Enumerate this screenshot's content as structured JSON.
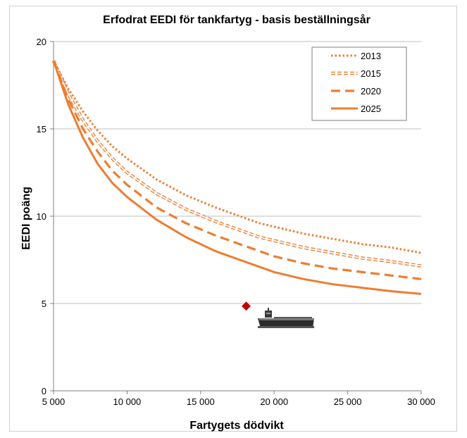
{
  "colors": {
    "series": "#ED7D31",
    "grid": "#BFBFBF",
    "axis": "#808080",
    "marker": "#C00000",
    "legend_border": "#7F7F7F"
  },
  "chart_data": {
    "type": "line",
    "title": "Erfodrat EEDI för tankfartyg - basis beställningsår",
    "xlabel": "Fartygets dödvikt",
    "ylabel": "EEDI  poäng",
    "xlim": [
      5000,
      30000
    ],
    "ylim": [
      0,
      20
    ],
    "x_ticks": [
      5000,
      10000,
      15000,
      20000,
      25000,
      30000
    ],
    "x_tick_labels": [
      "5 000",
      "10 000",
      "15 000",
      "20 000",
      "25 000",
      "30 000"
    ],
    "y_ticks": [
      0,
      5,
      10,
      15,
      20
    ],
    "y_tick_labels": [
      "0",
      "5",
      "10",
      "15",
      "20"
    ],
    "grid": "horizontal",
    "legend_position": "top-right",
    "x": [
      5000,
      6000,
      7000,
      8000,
      9000,
      10000,
      12000,
      14000,
      16000,
      18000,
      19000,
      20000,
      22000,
      24000,
      26000,
      28000,
      30000
    ],
    "series": [
      {
        "name": "2013",
        "style": "dotted",
        "values": [
          18.9,
          17.3,
          16.0,
          14.9,
          14.0,
          13.3,
          12.1,
          11.2,
          10.5,
          9.9,
          9.6,
          9.4,
          9.0,
          8.7,
          8.4,
          8.2,
          7.9
        ]
      },
      {
        "name": "2015",
        "style": "double",
        "values": [
          18.9,
          17.0,
          15.5,
          14.3,
          13.3,
          12.5,
          11.3,
          10.4,
          9.7,
          9.1,
          8.8,
          8.6,
          8.2,
          7.9,
          7.6,
          7.4,
          7.15
        ]
      },
      {
        "name": "2020",
        "style": "dashed",
        "values": [
          18.9,
          16.7,
          15.0,
          13.7,
          12.6,
          11.8,
          10.5,
          9.6,
          8.9,
          8.3,
          8.0,
          7.7,
          7.3,
          7.0,
          6.8,
          6.6,
          6.4
        ]
      },
      {
        "name": "2025",
        "style": "solid",
        "values": [
          18.9,
          16.4,
          14.5,
          13.0,
          11.9,
          11.1,
          9.8,
          8.8,
          8.0,
          7.4,
          7.1,
          6.8,
          6.4,
          6.1,
          5.9,
          5.7,
          5.55
        ]
      }
    ],
    "marker_point": {
      "x": 18100,
      "y": 4.85
    }
  }
}
